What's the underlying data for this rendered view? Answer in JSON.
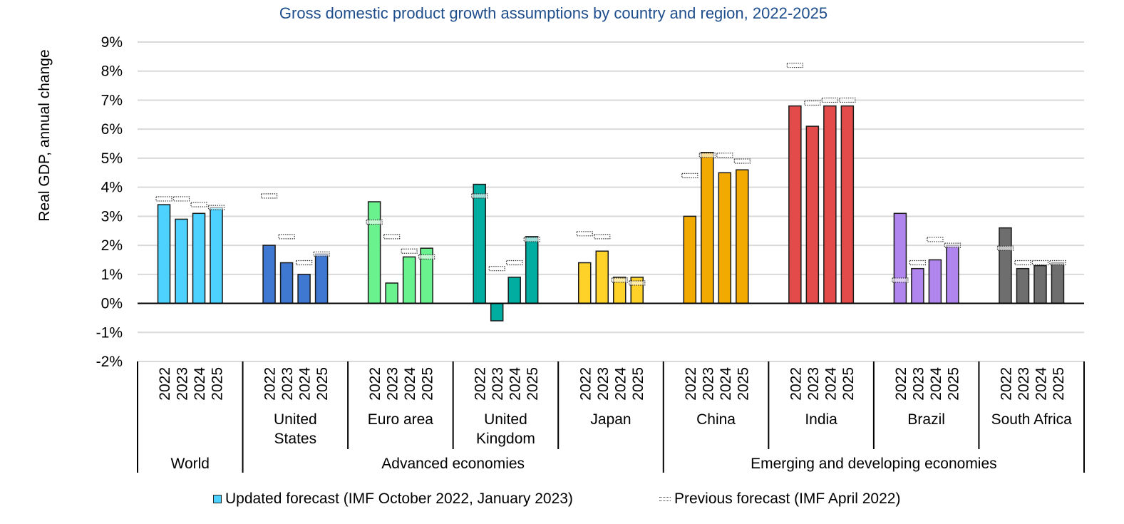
{
  "chart_data": {
    "type": "bar",
    "title": "Gross domestic product growth assumptions by country and region, 2022-2025",
    "xlabel": "",
    "ylabel": "Real GDP, annual change",
    "ylim": [
      -2,
      9
    ],
    "yticks": [
      "9%",
      "8%",
      "7%",
      "6%",
      "5%",
      "4%",
      "3%",
      "2%",
      "1%",
      "0%",
      "-1%",
      "-2%"
    ],
    "ytick_values": [
      9,
      8,
      7,
      6,
      5,
      4,
      3,
      2,
      1,
      0,
      -1,
      -2
    ],
    "grid": true,
    "legend_position": "bottom",
    "years": [
      "2022",
      "2023",
      "2024",
      "2025"
    ],
    "groups": [
      {
        "name": "World",
        "label_lines": [],
        "color": "#4DD2FF",
        "updated": [
          3.4,
          2.9,
          3.1,
          3.3
        ],
        "previous": [
          3.6,
          3.6,
          3.4,
          3.3
        ]
      },
      {
        "name": "United States",
        "label_lines": [
          "United",
          "States"
        ],
        "color": "#3F78D0",
        "updated": [
          2.0,
          1.4,
          1.0,
          1.7
        ],
        "previous": [
          3.7,
          2.3,
          1.4,
          1.7
        ]
      },
      {
        "name": "Euro area",
        "label_lines": [
          "Euro area"
        ],
        "color": "#6AF28F",
        "updated": [
          3.5,
          0.7,
          1.6,
          1.9
        ],
        "previous": [
          2.8,
          2.3,
          1.8,
          1.6
        ]
      },
      {
        "name": "United Kingdom",
        "label_lines": [
          "United",
          "Kingdom"
        ],
        "color": "#00ADA0",
        "updated": [
          4.1,
          -0.6,
          0.9,
          2.3
        ],
        "previous": [
          3.7,
          1.2,
          1.4,
          2.2
        ]
      },
      {
        "name": "Japan",
        "label_lines": [
          "Japan"
        ],
        "color": "#FFD22A",
        "updated": [
          1.4,
          1.8,
          0.9,
          0.9
        ],
        "previous": [
          2.4,
          2.3,
          0.8,
          0.7
        ]
      },
      {
        "name": "China",
        "label_lines": [
          "China"
        ],
        "color": "#F2A900",
        "updated": [
          3.0,
          5.2,
          4.5,
          4.6
        ],
        "previous": [
          4.4,
          5.1,
          5.1,
          4.9
        ]
      },
      {
        "name": "India",
        "label_lines": [
          "India"
        ],
        "color": "#E34A4A",
        "updated": [
          6.8,
          6.1,
          6.8,
          6.8
        ],
        "previous": [
          8.2,
          6.9,
          7.0,
          7.0
        ]
      },
      {
        "name": "Brazil",
        "label_lines": [
          "Brazil"
        ],
        "color": "#B185EE",
        "updated": [
          3.1,
          1.2,
          1.5,
          2.0
        ],
        "previous": [
          0.8,
          1.4,
          2.2,
          2.0
        ]
      },
      {
        "name": "South Africa",
        "label_lines": [
          "South Africa"
        ],
        "color": "#6E6E6E",
        "updated": [
          2.6,
          1.2,
          1.3,
          1.4
        ],
        "previous": [
          1.9,
          1.4,
          1.4,
          1.4
        ]
      }
    ],
    "super_groups": [
      {
        "name": "World",
        "span": [
          0,
          0
        ]
      },
      {
        "name": "Advanced economies",
        "span": [
          1,
          4
        ]
      },
      {
        "name": "Emerging and developing economies",
        "span": [
          5,
          8
        ]
      }
    ],
    "series": [
      {
        "name": "Updated forecast (IMF October 2022, January 2023)",
        "style": "bar"
      },
      {
        "name": "Previous forecast (IMF April 2022)",
        "style": "dotted-marker"
      }
    ]
  },
  "legend": {
    "updated_label": "Updated forecast (IMF October 2022, January 2023)",
    "previous_label": "Previous forecast (IMF April 2022)",
    "updated_color": "#4DD2FF"
  },
  "colors": {
    "title": "#1F4E8C",
    "grid": "#D9D9D9",
    "axis": "#000000",
    "bar_stroke": "#1A1A1A"
  }
}
